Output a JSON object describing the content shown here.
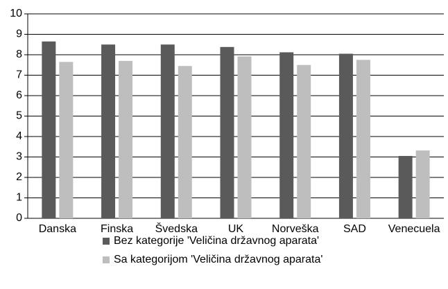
{
  "chart_data": {
    "type": "bar",
    "categories": [
      "Danska",
      "Finska",
      "Švedska",
      "UK",
      "Norveška",
      "SAD",
      "Venecuela"
    ],
    "series": [
      {
        "name": "Bez kategorije 'Veličina državnog aparata'",
        "color": "#5a5a5a",
        "values": [
          8.65,
          8.5,
          8.5,
          8.38,
          8.12,
          8.05,
          3.05
        ]
      },
      {
        "name": "Sa kategorijom 'Veličina državnog aparata'",
        "color": "#bebebe",
        "values": [
          7.65,
          7.7,
          7.45,
          7.92,
          7.5,
          7.75,
          3.32
        ]
      }
    ],
    "ylim": [
      0,
      10
    ],
    "yticks": [
      0,
      1,
      2,
      3,
      4,
      5,
      6,
      7,
      8,
      9,
      10
    ],
    "grid": true
  }
}
